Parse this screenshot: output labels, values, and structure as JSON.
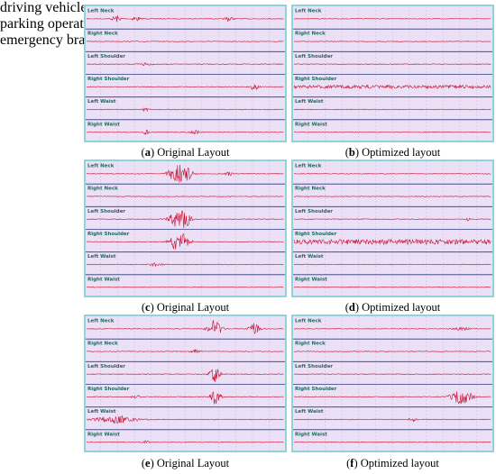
{
  "channels": [
    "Left Neck",
    "Right Neck",
    "Left Shoulder",
    "Right Shoulder",
    "Left Waist",
    "Right Waist"
  ],
  "rows": [
    {
      "label": "driving vehicles",
      "panels": [
        {
          "letter": "a",
          "caption": "Original Layout"
        },
        {
          "letter": "b",
          "caption": "Optimized layout"
        }
      ]
    },
    {
      "label": "parking operation equipment",
      "panels": [
        {
          "letter": "c",
          "caption": "Original Layout"
        },
        {
          "letter": "d",
          "caption": "Optimized layout"
        }
      ]
    },
    {
      "label": "emergency braking",
      "panels": [
        {
          "letter": "e",
          "caption": "Original Layout"
        },
        {
          "letter": "f",
          "caption": "Optimized layout"
        }
      ]
    }
  ]
}
